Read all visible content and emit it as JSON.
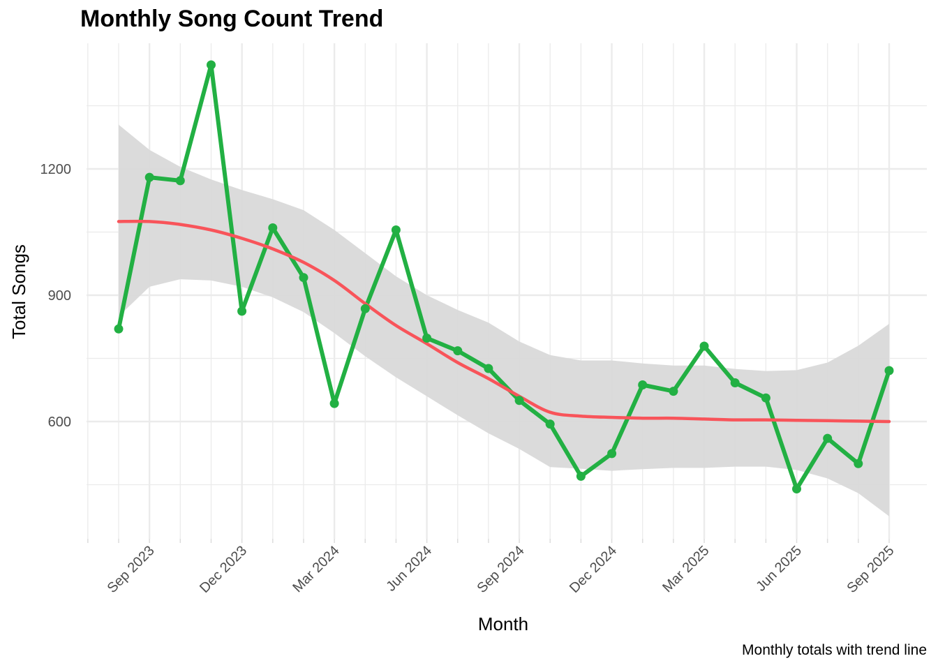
{
  "chart_data": {
    "type": "line",
    "title": "Monthly Song Count Trend",
    "caption": "Monthly totals with trend line",
    "xlabel": "Month",
    "ylabel": "Total Songs",
    "x": [
      "2023-08",
      "2023-09",
      "2023-10",
      "2023-11",
      "2023-12",
      "2024-01",
      "2024-02",
      "2024-03",
      "2024-04",
      "2024-05",
      "2024-06",
      "2024-07",
      "2024-08",
      "2024-09",
      "2024-10",
      "2024-11",
      "2024-12",
      "2025-01",
      "2025-02",
      "2025-03",
      "2025-04",
      "2025-05",
      "2025-06",
      "2025-07",
      "2025-08",
      "2025-09"
    ],
    "x_tick_labels": [
      "Sep 2023",
      "Dec 2023",
      "Mar 2024",
      "Jun 2024",
      "Sep 2024",
      "Dec 2024",
      "Mar 2025",
      "Jun 2025",
      "Sep 2025"
    ],
    "y_ticks": [
      600,
      900,
      1200
    ],
    "ylim": [
      360,
      1450
    ],
    "grid": true,
    "series": [
      {
        "role": "observed",
        "color": "#22b043",
        "values": [
          820,
          1180,
          1172,
          1447,
          862,
          1060,
          942,
          643,
          868,
          1055,
          798,
          768,
          726,
          650,
          594,
          470,
          524,
          687,
          672,
          779,
          692,
          656,
          440,
          560,
          500,
          721
        ]
      },
      {
        "role": "smooth",
        "color": "#f8545a",
        "values": [
          1075,
          1075,
          1068,
          1055,
          1035,
          1010,
          978,
          935,
          880,
          828,
          785,
          740,
          702,
          660,
          622,
          613,
          610,
          608,
          608,
          606,
          604,
          604,
          603,
          602,
          601,
          600
        ],
        "ci_low": [
          850,
          920,
          938,
          935,
          920,
          895,
          860,
          810,
          755,
          705,
          660,
          615,
          572,
          535,
          492,
          488,
          483,
          487,
          490,
          490,
          493,
          493,
          485,
          465,
          430,
          375
        ],
        "ci_high": [
          1305,
          1245,
          1205,
          1175,
          1150,
          1128,
          1102,
          1055,
          1000,
          945,
          900,
          865,
          835,
          790,
          758,
          745,
          745,
          738,
          733,
          733,
          725,
          720,
          722,
          740,
          780,
          832
        ],
        "ci_color": "#d9d9d9"
      }
    ]
  }
}
